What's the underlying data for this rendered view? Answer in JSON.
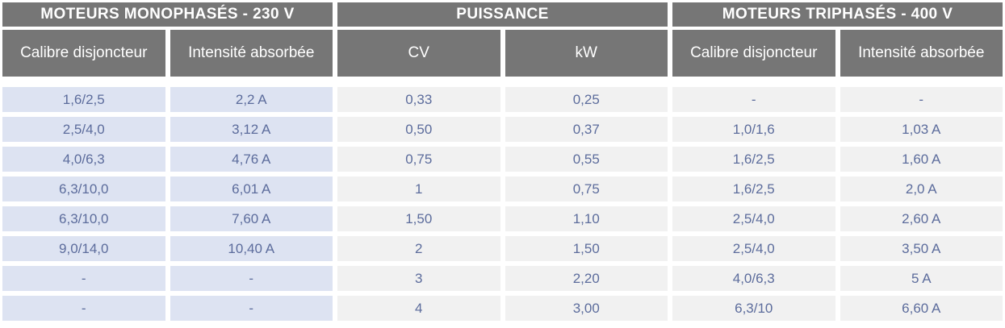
{
  "table": {
    "groups": [
      {
        "label": "MOTEURS MONOPHASÉS - 230 V"
      },
      {
        "label": "PUISSANCE"
      },
      {
        "label": "MOTEURS TRIPHASÉS - 400 V"
      }
    ],
    "columns": [
      {
        "label": "Calibre disjoncteur",
        "section": "monophase"
      },
      {
        "label": "Intensité absorbée",
        "section": "monophase"
      },
      {
        "label": "CV",
        "section": "puissance"
      },
      {
        "label": "kW",
        "section": "puissance"
      },
      {
        "label": "Calibre disjoncteur",
        "section": "triphase"
      },
      {
        "label": "Intensité absorbée",
        "section": "triphase"
      }
    ],
    "rows": [
      [
        "1,6/2,5",
        "2,2 A",
        "0,33",
        "0,25",
        "-",
        "-"
      ],
      [
        "2,5/4,0",
        "3,12 A",
        "0,50",
        "0,37",
        "1,0/1,6",
        "1,03 A"
      ],
      [
        "4,0/6,3",
        "4,76 A",
        "0,75",
        "0,55",
        "1,6/2,5",
        "1,60 A"
      ],
      [
        "6,3/10,0",
        "6,01 A",
        "1",
        "0,75",
        "1,6/2,5",
        "2,0 A"
      ],
      [
        "6,3/10,0",
        "7,60 A",
        "1,50",
        "1,10",
        "2,5/4,0",
        "2,60 A"
      ],
      [
        "9,0/14,0",
        "10,40 A",
        "2",
        "1,50",
        "2,5/4,0",
        "3,50 A"
      ],
      [
        "-",
        "-",
        "3",
        "2,20",
        "4,0/6,3",
        "5 A"
      ],
      [
        "-",
        "-",
        "4",
        "3,00",
        "6,3/10",
        "6,60 A"
      ]
    ]
  },
  "colors": {
    "header_bg": "#767676",
    "header_text": "#ffffff",
    "cell_blue_bg": "#dde3f2",
    "cell_gray_bg": "#f1f1f1",
    "cell_text": "#5c6c9c"
  }
}
